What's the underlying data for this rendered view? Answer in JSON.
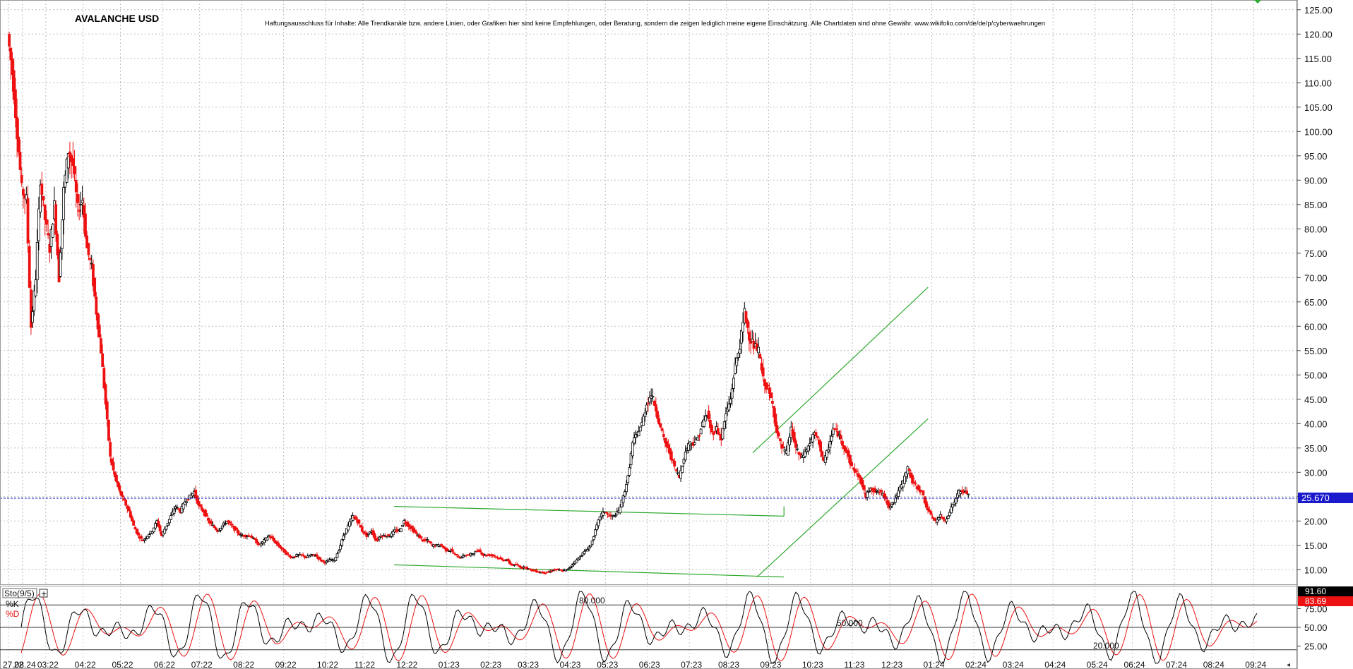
{
  "chart_data": {
    "type": "candlestick",
    "title": "AVALANCHE USD",
    "disclaimer": "Haftungsausschluss für Inhalte: Alle Trendkanäle bzw. andere Linien, oder Grafiken hier sind keine Empfehlungen, oder Beratung, sondern die zeigen lediglich meine eigene Einschätzung. Alle Chartdaten sind ohne Gewähr. www.wikifolio.com/de/de/p/cyberwaehrungen",
    "ylim": [
      7,
      127
    ],
    "yticks": [
      "10.00",
      "15.00",
      "20.00",
      "25.00",
      "30.00",
      "35.00",
      "40.00",
      "45.00",
      "50.00",
      "55.00",
      "60.00",
      "65.00",
      "70.00",
      "75.00",
      "80.00",
      "85.00",
      "90.00",
      "95.00",
      "100.00",
      "105.00",
      "110.00",
      "115.00",
      "120.00",
      "125.00"
    ],
    "last_price": 25.67,
    "last_price_label": "25.670",
    "xticks": [
      {
        "label": "27.08.24",
        "w": 0
      },
      {
        "label": "22",
        "w": 3
      },
      {
        "label": "03:22",
        "w": 8
      },
      {
        "label": "04:22",
        "w": 16
      },
      {
        "label": "05:22",
        "w": 24
      },
      {
        "label": "06:22",
        "w": 33
      },
      {
        "label": "07:22",
        "w": 41
      },
      {
        "label": "08:22",
        "w": 50
      },
      {
        "label": "09:22",
        "w": 59
      },
      {
        "label": "10:22",
        "w": 68
      },
      {
        "label": "11:22",
        "w": 76
      },
      {
        "label": "12:22",
        "w": 85
      },
      {
        "label": "01:23",
        "w": 94
      },
      {
        "label": "02:23",
        "w": 103
      },
      {
        "label": "03:23",
        "w": 111
      },
      {
        "label": "04:23",
        "w": 120
      },
      {
        "label": "05:23",
        "w": 128
      },
      {
        "label": "06:23",
        "w": 137
      },
      {
        "label": "07:23",
        "w": 146
      },
      {
        "label": "08:23",
        "w": 154
      },
      {
        "label": "09:23",
        "w": 163
      },
      {
        "label": "10:23",
        "w": 172
      },
      {
        "label": "11:23",
        "w": 181
      },
      {
        "label": "12:23",
        "w": 189
      },
      {
        "label": "01:24",
        "w": 198
      },
      {
        "label": "02:24",
        "w": 207
      },
      {
        "label": "03:24",
        "w": 215
      },
      {
        "label": "04:24",
        "w": 224
      },
      {
        "label": "05:24",
        "w": 233
      },
      {
        "label": "06:24",
        "w": 241
      },
      {
        "label": "07:24",
        "w": 250
      },
      {
        "label": "08:24",
        "w": 258
      },
      {
        "label": "09:24",
        "w": 267
      }
    ],
    "weeks_total": 270,
    "price_path": [
      [
        0,
        120
      ],
      [
        1,
        112
      ],
      [
        2,
        100
      ],
      [
        3,
        88
      ],
      [
        4,
        86
      ],
      [
        5,
        60
      ],
      [
        6,
        70
      ],
      [
        7,
        90
      ],
      [
        8,
        82
      ],
      [
        9,
        76
      ],
      [
        10,
        85
      ],
      [
        11,
        70
      ],
      [
        12,
        88
      ],
      [
        13,
        96
      ],
      [
        14,
        93
      ],
      [
        15,
        84
      ],
      [
        16,
        86
      ],
      [
        17,
        76
      ],
      [
        18,
        72
      ],
      [
        19,
        63
      ],
      [
        20,
        55
      ],
      [
        21,
        44
      ],
      [
        22,
        33
      ],
      [
        23,
        29
      ],
      [
        24,
        26
      ],
      [
        25,
        24
      ],
      [
        26,
        22
      ],
      [
        27,
        19
      ],
      [
        28,
        17
      ],
      [
        29,
        16
      ],
      [
        30,
        17
      ],
      [
        31,
        18
      ],
      [
        32,
        20
      ],
      [
        33,
        17
      ],
      [
        34,
        19
      ],
      [
        35,
        21
      ],
      [
        36,
        23
      ],
      [
        37,
        22
      ],
      [
        38,
        24
      ],
      [
        39,
        25
      ],
      [
        40,
        26
      ],
      [
        41,
        23
      ],
      [
        42,
        22
      ],
      [
        43,
        20
      ],
      [
        44,
        19
      ],
      [
        45,
        18
      ],
      [
        46,
        19
      ],
      [
        47,
        20
      ],
      [
        48,
        19
      ],
      [
        49,
        18
      ],
      [
        50,
        17
      ],
      [
        51,
        17
      ],
      [
        52,
        17
      ],
      [
        53,
        16
      ],
      [
        54,
        15
      ],
      [
        55,
        16
      ],
      [
        56,
        17
      ],
      [
        57,
        16
      ],
      [
        58,
        15
      ],
      [
        59,
        14
      ],
      [
        60,
        13
      ],
      [
        61,
        12.5
      ],
      [
        62,
        13
      ],
      [
        63,
        13
      ],
      [
        64,
        12.5
      ],
      [
        65,
        13
      ],
      [
        66,
        13
      ],
      [
        67,
        12
      ],
      [
        68,
        11.5
      ],
      [
        69,
        12
      ],
      [
        70,
        12
      ],
      [
        71,
        14
      ],
      [
        72,
        17
      ],
      [
        73,
        19
      ],
      [
        74,
        21
      ],
      [
        75,
        20
      ],
      [
        76,
        18
      ],
      [
        77,
        17
      ],
      [
        78,
        18
      ],
      [
        79,
        16
      ],
      [
        80,
        17
      ],
      [
        81,
        17
      ],
      [
        82,
        17
      ],
      [
        83,
        18
      ],
      [
        84,
        18
      ],
      [
        85,
        20
      ],
      [
        86,
        19
      ],
      [
        87,
        18
      ],
      [
        88,
        17
      ],
      [
        89,
        16
      ],
      [
        90,
        16
      ],
      [
        91,
        15
      ],
      [
        92,
        15
      ],
      [
        93,
        15
      ],
      [
        94,
        14
      ],
      [
        95,
        14
      ],
      [
        96,
        13
      ],
      [
        97,
        12.5
      ],
      [
        98,
        13
      ],
      [
        99,
        13
      ],
      [
        100,
        13.5
      ],
      [
        101,
        14
      ],
      [
        102,
        13
      ],
      [
        103,
        13
      ],
      [
        104,
        13
      ],
      [
        105,
        12.5
      ],
      [
        106,
        12
      ],
      [
        107,
        12
      ],
      [
        108,
        11
      ],
      [
        109,
        11
      ],
      [
        110,
        10.5
      ],
      [
        111,
        10.5
      ],
      [
        112,
        10
      ],
      [
        113,
        9.8
      ],
      [
        114,
        9.5
      ],
      [
        115,
        9.4
      ],
      [
        116,
        9.5
      ],
      [
        117,
        10
      ],
      [
        118,
        10
      ],
      [
        119,
        9.8
      ],
      [
        120,
        10
      ],
      [
        121,
        11
      ],
      [
        122,
        12
      ],
      [
        123,
        13
      ],
      [
        124,
        14
      ],
      [
        125,
        15
      ],
      [
        126,
        18
      ],
      [
        127,
        21
      ],
      [
        128,
        22
      ],
      [
        129,
        21
      ],
      [
        130,
        21
      ],
      [
        131,
        22
      ],
      [
        132,
        25
      ],
      [
        133,
        29
      ],
      [
        134,
        36
      ],
      [
        135,
        38
      ],
      [
        136,
        40
      ],
      [
        137,
        44
      ],
      [
        138,
        46
      ],
      [
        139,
        43
      ],
      [
        140,
        39
      ],
      [
        141,
        36
      ],
      [
        142,
        34
      ],
      [
        143,
        31
      ],
      [
        144,
        29
      ],
      [
        145,
        33
      ],
      [
        146,
        36
      ],
      [
        147,
        36
      ],
      [
        148,
        37
      ],
      [
        149,
        40
      ],
      [
        150,
        42
      ],
      [
        151,
        38
      ],
      [
        152,
        39
      ],
      [
        153,
        37
      ],
      [
        154,
        42
      ],
      [
        155,
        45
      ],
      [
        156,
        52
      ],
      [
        157,
        56
      ],
      [
        158,
        63
      ],
      [
        159,
        58
      ],
      [
        160,
        56
      ],
      [
        161,
        55
      ],
      [
        162,
        49
      ],
      [
        163,
        47
      ],
      [
        164,
        44
      ],
      [
        165,
        38
      ],
      [
        166,
        35
      ],
      [
        167,
        34
      ],
      [
        168,
        39
      ],
      [
        169,
        35
      ],
      [
        170,
        33
      ],
      [
        171,
        34
      ],
      [
        172,
        36
      ],
      [
        173,
        38
      ],
      [
        174,
        36
      ],
      [
        175,
        32
      ],
      [
        176,
        35
      ],
      [
        177,
        39
      ],
      [
        178,
        38
      ],
      [
        179,
        36
      ],
      [
        180,
        34
      ],
      [
        181,
        31
      ],
      [
        182,
        30
      ],
      [
        183,
        28
      ],
      [
        184,
        25
      ],
      [
        185,
        27
      ],
      [
        186,
        26
      ],
      [
        187,
        26
      ],
      [
        188,
        25
      ],
      [
        189,
        23
      ],
      [
        190,
        24
      ],
      [
        191,
        26
      ],
      [
        192,
        28
      ],
      [
        193,
        31
      ],
      [
        194,
        28
      ],
      [
        195,
        27
      ],
      [
        196,
        26
      ],
      [
        197,
        23
      ],
      [
        198,
        21
      ],
      [
        199,
        20
      ],
      [
        200,
        21
      ],
      [
        201,
        20
      ],
      [
        202,
        22
      ],
      [
        203,
        24
      ],
      [
        204,
        26
      ],
      [
        205,
        26
      ],
      [
        206,
        25.67
      ]
    ],
    "stoch_label": "Sto(9/5)",
    "stoch_k_label": "%K",
    "stoch_d_label": "%D",
    "stoch_levels": [
      {
        "label": "80.000"
      },
      {
        "label": "50.000"
      },
      {
        "label": "20.000"
      }
    ],
    "stoch_yticks": [
      "25.00",
      "50.00",
      "75.00"
    ],
    "stoch_k_last": "91.60",
    "stoch_d_last": "83.69",
    "colors": {
      "up": "#000000",
      "down": "#ee1111",
      "trend": "#2ea82e",
      "last_price": "#1a1acc",
      "k": "#000000",
      "d": "#ee1111"
    }
  }
}
